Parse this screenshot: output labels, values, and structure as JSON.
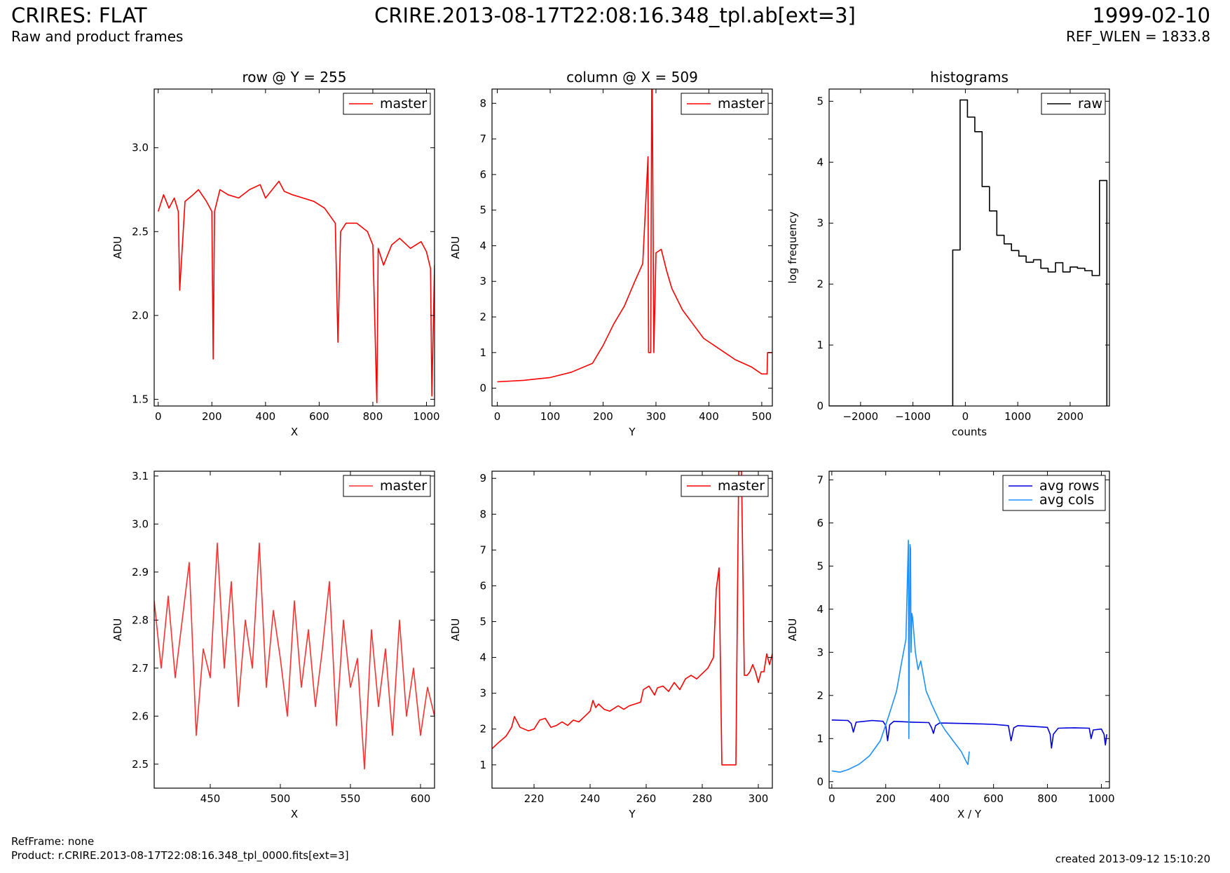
{
  "header": {
    "title": "CRIRES: FLAT",
    "subtitle": "Raw and product frames",
    "center_title": "CRIRE.2013-08-17T22:08:16.348_tpl.ab[ext=3]",
    "date": "1999-02-10",
    "ref_wlen": "REF_WLEN = 1833.8"
  },
  "footer": {
    "ref_frame": "RefFrame: none",
    "product": "Product: r.CRIRE.2013-08-17T22:08:16.348_tpl_0000.fits[ext=3]",
    "created": "created 2013-09-12 15:10:20"
  },
  "colors": {
    "master": "#ff0000",
    "raw": "#000000",
    "avg_rows": "#0000dd",
    "avg_cols": "#1e90ff"
  },
  "chart_data": [
    {
      "type": "line",
      "title": "row @ Y = 255",
      "xlabel": "X",
      "ylabel": "ADU",
      "xlim": [
        -15,
        1030
      ],
      "ylim": [
        1.46,
        3.35
      ],
      "xticks": [
        0,
        200,
        400,
        600,
        800,
        1000
      ],
      "yticks": [
        1.5,
        2.0,
        2.5,
        3.0
      ],
      "legend_position": "top-right",
      "series": [
        {
          "name": "master",
          "color": "#ff0000",
          "x": [
            0,
            20,
            40,
            60,
            75,
            80,
            100,
            130,
            150,
            180,
            200,
            205,
            210,
            230,
            260,
            300,
            340,
            380,
            400,
            430,
            450,
            470,
            500,
            540,
            580,
            620,
            660,
            670,
            680,
            700,
            740,
            780,
            800,
            815,
            820,
            840,
            870,
            900,
            940,
            980,
            1000,
            1015,
            1020,
            1030
          ],
          "y": [
            2.62,
            2.72,
            2.64,
            2.7,
            2.62,
            2.15,
            2.68,
            2.72,
            2.75,
            2.68,
            2.62,
            1.74,
            2.62,
            2.75,
            2.72,
            2.7,
            2.75,
            2.78,
            2.7,
            2.76,
            2.8,
            2.74,
            2.72,
            2.7,
            2.68,
            2.64,
            2.55,
            1.84,
            2.5,
            2.55,
            2.55,
            2.5,
            2.42,
            1.48,
            2.4,
            2.3,
            2.42,
            2.46,
            2.4,
            2.44,
            2.38,
            2.28,
            1.52,
            2.3
          ]
        }
      ]
    },
    {
      "type": "line",
      "title": "column @ X = 509",
      "xlabel": "Y",
      "ylabel": "ADU",
      "xlim": [
        -10,
        520
      ],
      "ylim": [
        -0.5,
        8.4
      ],
      "xticks": [
        0,
        100,
        200,
        300,
        400,
        500
      ],
      "yticks": [
        0,
        1,
        2,
        3,
        4,
        5,
        6,
        7,
        8
      ],
      "legend_position": "top-right",
      "series": [
        {
          "name": "master",
          "color": "#ff0000",
          "x": [
            0,
            50,
            100,
            140,
            180,
            200,
            220,
            240,
            260,
            275,
            285,
            286,
            290,
            292,
            293,
            296,
            300,
            310,
            320,
            330,
            350,
            370,
            390,
            420,
            450,
            480,
            500,
            510,
            511,
            520
          ],
          "y": [
            0.18,
            0.22,
            0.3,
            0.45,
            0.7,
            1.2,
            1.8,
            2.3,
            3.0,
            3.5,
            6.5,
            1.0,
            1.0,
            8.4,
            8.4,
            1.0,
            3.8,
            3.9,
            3.3,
            2.8,
            2.2,
            1.8,
            1.4,
            1.1,
            0.8,
            0.6,
            0.4,
            0.4,
            1.0,
            1.0
          ]
        }
      ]
    },
    {
      "type": "line",
      "title": "histograms",
      "xlabel": "counts",
      "ylabel": "log frequency",
      "xlim": [
        -2600,
        2750
      ],
      "ylim": [
        0,
        5.2
      ],
      "xticks": [
        -2000,
        -1000,
        0,
        1000,
        2000
      ],
      "yticks": [
        0,
        1,
        2,
        3,
        4,
        5
      ],
      "legend_position": "top-right",
      "series": [
        {
          "name": "raw",
          "color": "#000000",
          "x": [
            -2600,
            -240,
            -240,
            -100,
            -100,
            40,
            40,
            180,
            180,
            320,
            320,
            460,
            460,
            600,
            600,
            740,
            740,
            880,
            880,
            1020,
            1020,
            1160,
            1160,
            1300,
            1300,
            1440,
            1440,
            1580,
            1580,
            1720,
            1720,
            1860,
            1860,
            2000,
            2000,
            2140,
            2140,
            2280,
            2280,
            2420,
            2420,
            2560,
            2560,
            2700,
            2700
          ],
          "y": [
            0,
            0,
            2.56,
            2.56,
            5.02,
            5.02,
            4.74,
            4.74,
            4.5,
            4.5,
            3.6,
            3.6,
            3.2,
            3.2,
            2.8,
            2.8,
            2.66,
            2.66,
            2.55,
            2.55,
            2.46,
            2.46,
            2.36,
            2.36,
            2.4,
            2.4,
            2.26,
            2.26,
            2.2,
            2.2,
            2.35,
            2.35,
            2.2,
            2.2,
            2.28,
            2.28,
            2.26,
            2.26,
            2.22,
            2.22,
            2.14,
            2.14,
            3.7,
            3.7,
            0
          ]
        }
      ]
    },
    {
      "type": "line",
      "title": "",
      "xlabel": "X",
      "ylabel": "ADU",
      "xlim": [
        410,
        610
      ],
      "ylim": [
        2.45,
        3.11
      ],
      "xticks": [
        450,
        500,
        550,
        600
      ],
      "yticks": [
        2.5,
        2.6,
        2.7,
        2.8,
        2.9,
        3.0,
        3.1
      ],
      "legend_position": "top-right",
      "series": [
        {
          "name": "master",
          "color": "#ff3030",
          "x": [
            410,
            415,
            420,
            425,
            430,
            435,
            440,
            445,
            450,
            455,
            460,
            465,
            470,
            475,
            480,
            485,
            490,
            495,
            500,
            505,
            510,
            515,
            520,
            525,
            530,
            535,
            540,
            545,
            550,
            555,
            560,
            565,
            570,
            575,
            580,
            585,
            590,
            595,
            600,
            605,
            610
          ],
          "y": [
            2.84,
            2.7,
            2.85,
            2.68,
            2.8,
            2.92,
            2.56,
            2.74,
            2.68,
            2.96,
            2.7,
            2.88,
            2.62,
            2.8,
            2.7,
            2.96,
            2.66,
            2.82,
            2.72,
            2.6,
            2.84,
            2.66,
            2.78,
            2.62,
            2.74,
            2.88,
            2.58,
            2.8,
            2.66,
            2.72,
            2.49,
            2.78,
            2.62,
            2.74,
            2.56,
            2.8,
            2.6,
            2.7,
            2.56,
            2.66,
            2.6
          ]
        }
      ]
    },
    {
      "type": "line",
      "title": "",
      "xlabel": "Y",
      "ylabel": "ADU",
      "xlim": [
        205,
        305
      ],
      "ylim": [
        0.35,
        9.2
      ],
      "xticks": [
        220,
        240,
        260,
        280,
        300
      ],
      "yticks": [
        1,
        2,
        3,
        4,
        5,
        6,
        7,
        8,
        9
      ],
      "legend_position": "top-right",
      "series": [
        {
          "name": "master",
          "color": "#ff0000",
          "x": [
            205,
            207,
            210,
            212,
            213,
            215,
            218,
            220,
            222,
            224,
            226,
            228,
            230,
            232,
            234,
            236,
            238,
            240,
            241,
            242,
            243,
            245,
            247,
            249,
            250,
            252,
            254,
            256,
            258,
            259,
            261,
            263,
            264,
            266,
            268,
            270,
            272,
            274,
            276,
            278,
            280,
            282,
            284,
            285,
            286,
            287,
            288,
            289,
            290,
            291,
            292,
            293,
            294,
            295,
            296,
            297,
            298,
            299,
            300,
            301,
            302,
            303,
            304,
            305
          ],
          "y": [
            1.45,
            1.6,
            1.8,
            2.05,
            2.35,
            2.05,
            1.95,
            2.0,
            2.25,
            2.3,
            2.05,
            2.1,
            2.2,
            2.1,
            2.25,
            2.2,
            2.35,
            2.5,
            2.8,
            2.6,
            2.7,
            2.55,
            2.5,
            2.6,
            2.65,
            2.55,
            2.65,
            2.7,
            2.75,
            3.1,
            3.2,
            2.95,
            3.15,
            3.2,
            3.05,
            3.3,
            3.1,
            3.4,
            3.5,
            3.4,
            3.55,
            3.7,
            4.0,
            5.9,
            6.5,
            1.0,
            1.0,
            1.0,
            1.0,
            1.0,
            1.0,
            9.2,
            9.2,
            3.5,
            3.5,
            3.6,
            3.8,
            3.6,
            3.3,
            3.6,
            3.6,
            4.1,
            3.8,
            4.1
          ]
        }
      ]
    },
    {
      "type": "line",
      "title": "",
      "xlabel": "X / Y",
      "ylabel": "ADU",
      "xlim": [
        -10,
        1030
      ],
      "ylim": [
        -0.15,
        7.2
      ],
      "xticks": [
        0,
        200,
        400,
        600,
        800,
        1000
      ],
      "yticks": [
        0,
        1,
        2,
        3,
        4,
        5,
        6,
        7
      ],
      "legend_position": "top-right",
      "series": [
        {
          "name": "avg rows",
          "color": "#0000dd",
          "x": [
            0,
            60,
            72,
            80,
            90,
            150,
            190,
            200,
            207,
            215,
            230,
            300,
            360,
            370,
            377,
            385,
            400,
            500,
            600,
            655,
            665,
            675,
            690,
            750,
            800,
            810,
            815,
            822,
            840,
            900,
            955,
            962,
            970,
            1000,
            1010,
            1015,
            1020
          ],
          "y": [
            1.43,
            1.42,
            1.35,
            1.15,
            1.38,
            1.42,
            1.4,
            1.3,
            0.95,
            1.32,
            1.4,
            1.38,
            1.37,
            1.25,
            1.12,
            1.3,
            1.36,
            1.35,
            1.33,
            1.3,
            0.95,
            1.25,
            1.3,
            1.28,
            1.26,
            1.1,
            0.78,
            1.1,
            1.24,
            1.25,
            1.24,
            1.0,
            1.2,
            1.22,
            1.1,
            0.85,
            1.1
          ]
        },
        {
          "name": "avg cols",
          "color": "#1e90ff",
          "x": [
            0,
            30,
            60,
            100,
            140,
            180,
            210,
            240,
            260,
            275,
            284,
            286,
            290,
            292,
            294,
            297,
            300,
            310,
            320,
            330,
            350,
            370,
            385,
            400,
            420,
            450,
            480,
            500,
            505,
            510
          ],
          "y": [
            0.25,
            0.22,
            0.28,
            0.4,
            0.6,
            0.95,
            1.5,
            2.1,
            2.8,
            3.3,
            5.6,
            1.0,
            5.5,
            5.4,
            3.0,
            3.9,
            3.8,
            3.0,
            2.6,
            2.8,
            2.1,
            1.8,
            1.6,
            1.4,
            1.2,
            0.95,
            0.7,
            0.45,
            0.4,
            0.7
          ]
        }
      ]
    }
  ]
}
